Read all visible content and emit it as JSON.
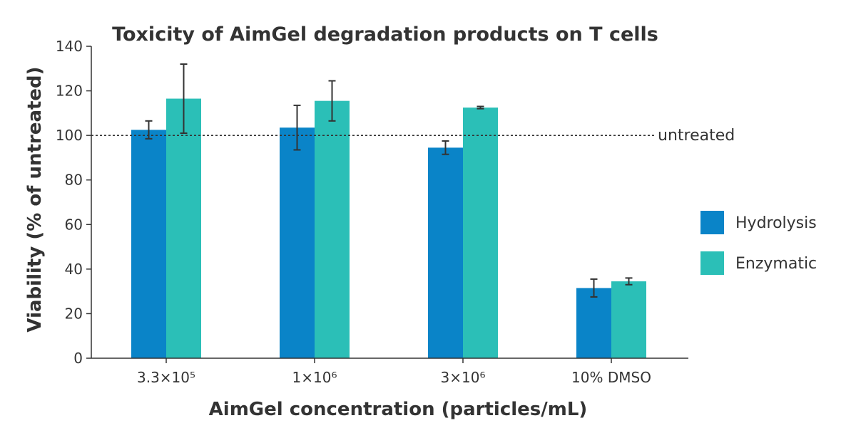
{
  "chart_data": {
    "type": "bar",
    "title": "Toxicity of AimGel degradation products on T cells",
    "xlabel": "AimGel concentration (particles/mL)",
    "ylabel": "Viability (% of untreated)",
    "categories": [
      "3.3×10⁵",
      "1×10⁶",
      "3×10⁶",
      "10% DMSO"
    ],
    "ylim": [
      0,
      140
    ],
    "yticks": [
      0,
      20,
      40,
      60,
      80,
      100,
      120,
      140
    ],
    "series": [
      {
        "name": "Hydrolysis",
        "color": "#0a84c8",
        "values": [
          102.5,
          103.5,
          94.5,
          31.5
        ],
        "error": [
          4.0,
          10.0,
          3.0,
          4.0
        ]
      },
      {
        "name": "Enzymatic",
        "color": "#2bbfb7",
        "values": [
          116.5,
          115.5,
          112.5,
          34.5
        ],
        "error": [
          15.5,
          9.0,
          0.5,
          1.5
        ]
      }
    ],
    "reference_line": {
      "value": 100,
      "label": "untreated",
      "style": "dotted"
    },
    "grid": false,
    "legend": "right"
  }
}
